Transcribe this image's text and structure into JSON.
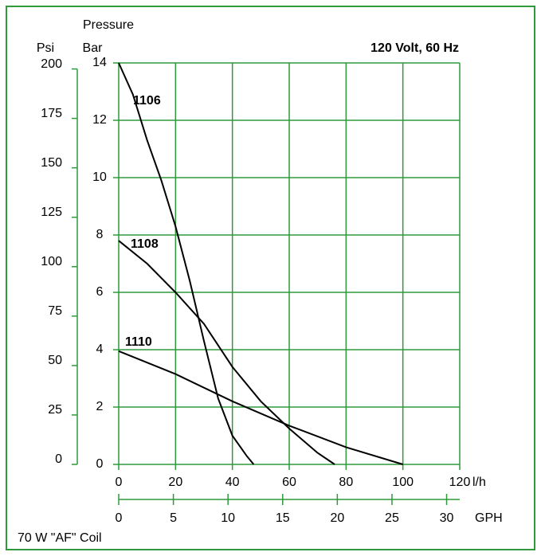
{
  "chart_data": {
    "type": "line",
    "label_top": "Pressure",
    "y2_label": "Psi",
    "y_label": "Bar",
    "title": "120 Volt, 60 Hz",
    "x_label": "l/h",
    "x2_label": "GPH",
    "note": "70 W \"AF\" Coil",
    "xlim": [
      0,
      120
    ],
    "xticks": [
      0,
      20,
      40,
      60,
      80,
      100,
      120
    ],
    "x2lim": [
      0,
      31.2
    ],
    "x2ticks": [
      0,
      5,
      10,
      15,
      20,
      25,
      30
    ],
    "ylim": [
      0,
      14
    ],
    "yticks": [
      0,
      2,
      4,
      6,
      8,
      10,
      12,
      14
    ],
    "y2lim": [
      0,
      203.05
    ],
    "y2ticks": [
      0,
      25,
      50,
      75,
      100,
      125,
      150,
      175,
      200
    ],
    "grid": true,
    "grid_color": "#2e9a3c",
    "series": [
      {
        "name": "1106",
        "color": "#000000",
        "x": [
          0,
          5,
          10,
          15,
          20,
          25,
          30,
          35,
          40,
          45,
          47.5
        ],
        "values": [
          14,
          12.9,
          11.3,
          9.9,
          8.3,
          6.4,
          4.3,
          2.3,
          1.0,
          0.3,
          0
        ]
      },
      {
        "name": "1108",
        "color": "#000000",
        "x": [
          0,
          10,
          20,
          30,
          40,
          50,
          60,
          70,
          76
        ],
        "values": [
          7.8,
          7.0,
          6.0,
          4.9,
          3.4,
          2.2,
          1.25,
          0.4,
          0
        ]
      },
      {
        "name": "1110",
        "color": "#000000",
        "x": [
          0,
          20,
          40,
          60,
          80,
          100
        ],
        "values": [
          3.95,
          3.15,
          2.2,
          1.35,
          0.6,
          0
        ]
      }
    ]
  }
}
